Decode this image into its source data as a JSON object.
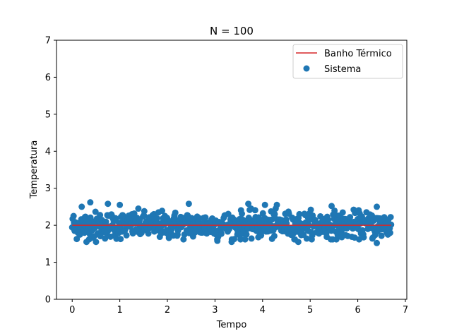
{
  "chart_data": {
    "type": "scatter",
    "title": "N = 100",
    "xlabel": "Tempo",
    "ylabel": "Temperatura",
    "xlim": [
      -0.33,
      7.03
    ],
    "ylim": [
      0,
      7
    ],
    "x_ticks": [
      "0",
      "1",
      "2",
      "3",
      "4",
      "5",
      "6",
      "7"
    ],
    "y_ticks": [
      "0",
      "1",
      "2",
      "3",
      "4",
      "5",
      "6",
      "7"
    ],
    "grid": false,
    "legend_position": "top-right",
    "series": [
      {
        "name": "Banho Térmico",
        "type": "line",
        "color": "#d62728",
        "x": [
          0,
          6.7
        ],
        "y": [
          2.0,
          2.0
        ]
      },
      {
        "name": "Sistema",
        "type": "scatter",
        "color": "#1f77b4",
        "x_range": [
          0,
          6.7
        ],
        "count": 700,
        "mean": 2.0,
        "std": 0.18,
        "highlights": [
          {
            "x": 0.05,
            "y": 1.85
          },
          {
            "x": 0.2,
            "y": 2.5
          },
          {
            "x": 0.38,
            "y": 2.62
          },
          {
            "x": 0.3,
            "y": 1.55
          },
          {
            "x": 0.5,
            "y": 1.55
          },
          {
            "x": 0.75,
            "y": 2.58
          },
          {
            "x": 1.0,
            "y": 2.55
          },
          {
            "x": 2.45,
            "y": 2.58
          },
          {
            "x": 3.05,
            "y": 1.58
          },
          {
            "x": 3.35,
            "y": 1.55
          },
          {
            "x": 3.7,
            "y": 2.58
          },
          {
            "x": 4.05,
            "y": 2.55
          },
          {
            "x": 4.3,
            "y": 2.55
          },
          {
            "x": 4.75,
            "y": 1.55
          },
          {
            "x": 5.45,
            "y": 2.52
          },
          {
            "x": 6.4,
            "y": 1.52
          },
          {
            "x": 6.4,
            "y": 2.5
          }
        ]
      }
    ]
  }
}
